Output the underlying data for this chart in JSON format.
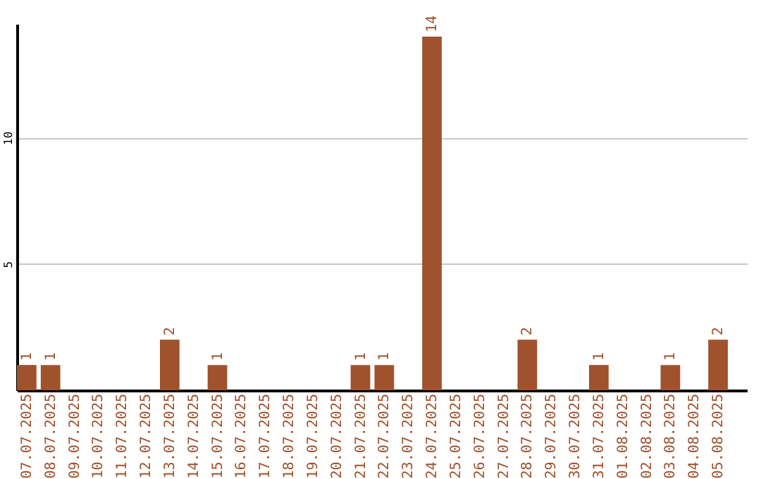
{
  "chart_data": {
    "type": "bar",
    "categories": [
      "07.07.2025",
      "08.07.2025",
      "09.07.2025",
      "10.07.2025",
      "11.07.2025",
      "12.07.2025",
      "13.07.2025",
      "14.07.2025",
      "15.07.2025",
      "16.07.2025",
      "17.07.2025",
      "18.07.2025",
      "19.07.2025",
      "20.07.2025",
      "21.07.2025",
      "22.07.2025",
      "23.07.2025",
      "24.07.2025",
      "25.07.2025",
      "26.07.2025",
      "27.07.2025",
      "28.07.2025",
      "29.07.2025",
      "30.07.2025",
      "31.07.2025",
      "01.08.2025",
      "02.08.2025",
      "03.08.2025",
      "04.08.2025",
      "05.08.2025"
    ],
    "values": [
      1,
      1,
      0,
      0,
      0,
      0,
      2,
      0,
      1,
      0,
      0,
      0,
      0,
      0,
      1,
      1,
      0,
      14,
      0,
      0,
      0,
      2,
      0,
      0,
      1,
      0,
      0,
      1,
      0,
      2
    ],
    "value_labels": [
      "1",
      "1",
      null,
      null,
      null,
      null,
      "2",
      null,
      "1",
      null,
      null,
      null,
      null,
      null,
      "1",
      "1",
      null,
      "14",
      null,
      null,
      null,
      "2",
      null,
      null,
      "1",
      null,
      null,
      "1",
      null,
      "2"
    ],
    "color": "#a0522d",
    "ylim": [
      0,
      14.5
    ],
    "yticks": [
      5,
      10
    ],
    "grid": "y"
  }
}
